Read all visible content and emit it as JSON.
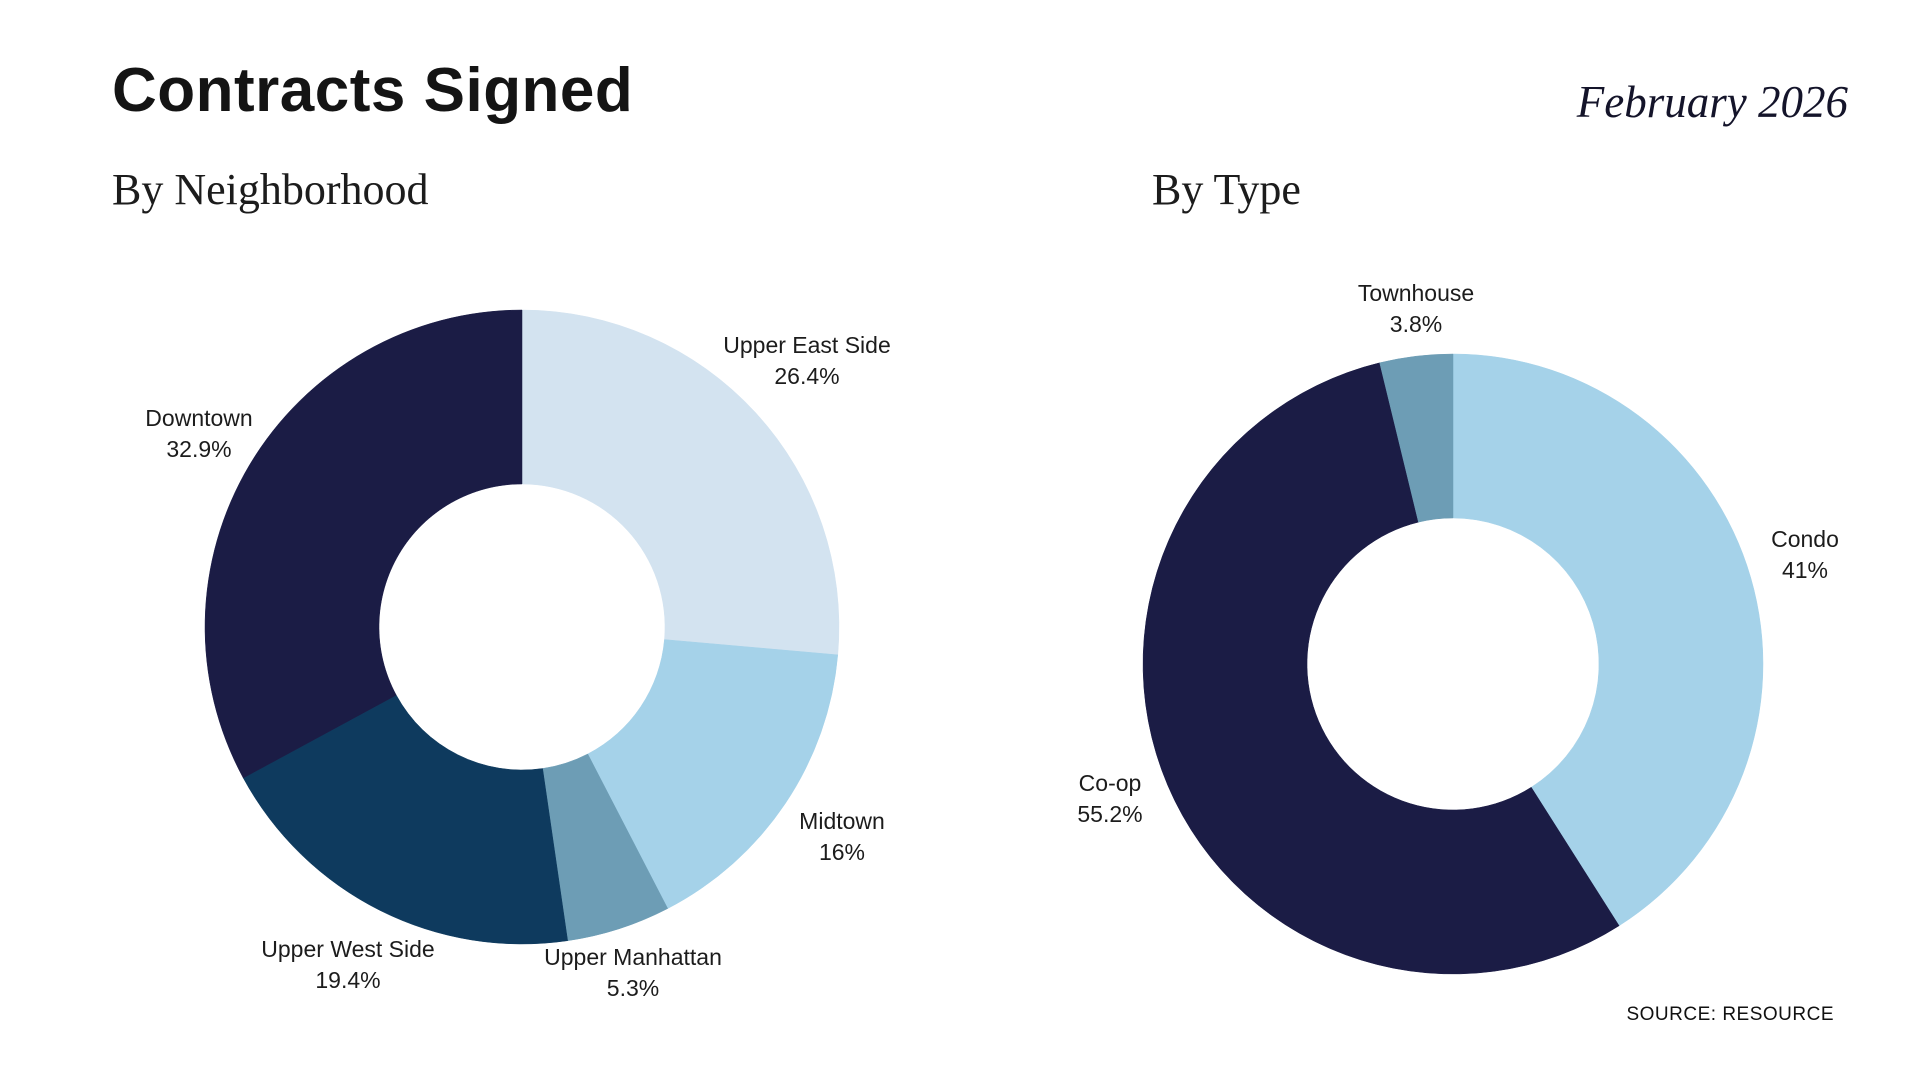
{
  "header": {
    "title": "Contracts Signed",
    "date": "February 2026"
  },
  "source": "SOURCE: RESOURCE",
  "chart_data": [
    {
      "type": "pie",
      "title": "By Neighborhood",
      "donut": true,
      "start_angle_deg": 0,
      "direction": "clockwise",
      "legend": "none",
      "labels": [
        "Upper East Side",
        "Midtown",
        "Upper Manhattan",
        "Upper West Side",
        "Downtown"
      ],
      "values": [
        26.4,
        16,
        5.3,
        19.4,
        32.9
      ],
      "value_labels": [
        "26.4%",
        "16%",
        "5.3%",
        "19.4%",
        "32.9%"
      ],
      "colors": [
        "#d3e3f0",
        "#a5d2e9",
        "#6d9db5",
        "#0e3a5e",
        "#1b1c45"
      ]
    },
    {
      "type": "pie",
      "title": "By Type",
      "donut": true,
      "start_angle_deg": 0,
      "direction": "clockwise",
      "legend": "none",
      "labels": [
        "Condo",
        "Co-op",
        "Townhouse"
      ],
      "values": [
        41,
        55.2,
        3.8
      ],
      "value_labels": [
        "41%",
        "55.2%",
        "3.8%"
      ],
      "colors": [
        "#a5d2e9",
        "#1b1c45",
        "#6d9db5"
      ]
    }
  ]
}
